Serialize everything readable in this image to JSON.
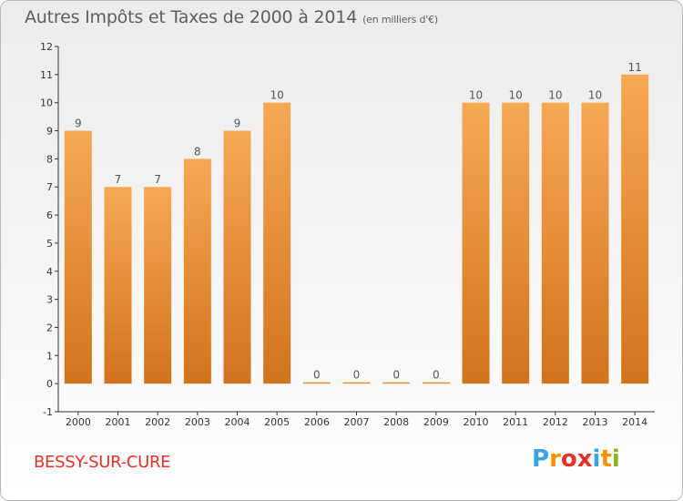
{
  "header": {
    "title": "Autres Impôts et Taxes de 2000 à 2014",
    "unit": "(en milliers d'€)"
  },
  "commune": "BESSY-SUR-CURE",
  "logo": {
    "text": "Proxiti",
    "letters": [
      "P",
      "r",
      "o",
      "x",
      "i",
      "t",
      "i"
    ],
    "colors": [
      "#3aa5dc",
      "#f39200",
      "#e4312b",
      "#e4312b",
      "#3aa5dc",
      "#f39200",
      "#8bb31d"
    ]
  },
  "colors": {
    "bar_top": "#f6a853",
    "bar_bottom": "#d2731c",
    "title": "#5e5e5e",
    "commune": "#e4312b"
  },
  "chart_data": {
    "type": "bar",
    "title": "Autres Impôts et Taxes de 2000 à 2014",
    "xlabel": "",
    "ylabel": "",
    "categories": [
      "2000",
      "2001",
      "2002",
      "2003",
      "2004",
      "2005",
      "2006",
      "2007",
      "2008",
      "2009",
      "2010",
      "2011",
      "2012",
      "2013",
      "2014"
    ],
    "values": [
      9,
      7,
      7,
      8,
      9,
      10,
      0,
      0,
      0,
      0,
      10,
      10,
      10,
      10,
      11
    ],
    "value_labels": [
      "9",
      "7",
      "7",
      "8",
      "9",
      "10",
      "0",
      "0",
      "0",
      "0",
      "10",
      "10",
      "10",
      "10",
      "11"
    ],
    "ylim": [
      -1,
      12
    ],
    "yticks": [
      -1,
      0,
      1,
      2,
      3,
      4,
      5,
      6,
      7,
      8,
      9,
      10,
      11,
      12
    ],
    "ytick_labels": [
      "-1",
      "0",
      "1",
      "2",
      "3",
      "4",
      "5",
      "6",
      "7",
      "8",
      "9",
      "10",
      "11",
      "12"
    ],
    "grid": false,
    "legend": "none"
  }
}
